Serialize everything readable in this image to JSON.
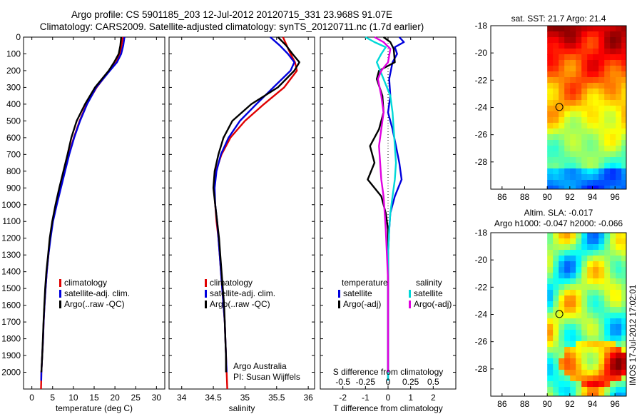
{
  "header": {
    "title_line1": "Argo profile: CS 5901185_203 12-Jul-2012 20120715_331 23.968S 91.07E",
    "title_line2": "Climatology: CARS2009. Satellite-adjusted climatology: synTS_20120711.nc (1.7d earlier)"
  },
  "side_label": "IMOS 17-Jul-2012 17:02:01",
  "colors": {
    "climatology": "#e00000",
    "satellite": "#0000dd",
    "argo": "#000000",
    "salinity_satellite": "#00d8d8",
    "salinity_argo": "#e000e0"
  },
  "chart_data": [
    {
      "id": "temperature",
      "type": "line",
      "xlabel": "temperature (deg C)",
      "ylabel": "",
      "xlim": [
        -2,
        32
      ],
      "ylim": [
        2100,
        0
      ],
      "xticks": [
        0,
        5,
        10,
        15,
        20,
        25,
        30
      ],
      "yticks": [
        0,
        100,
        200,
        300,
        400,
        500,
        600,
        700,
        800,
        900,
        1000,
        1100,
        1200,
        1300,
        1400,
        1500,
        1600,
        1700,
        1800,
        1900,
        2000
      ],
      "legend": [
        "climatology",
        "satellite-adj. clim.",
        "Argo(..raw -QC)"
      ],
      "legend_position": "lower-center",
      "series": [
        {
          "name": "climatology",
          "color": "#e00000",
          "x": [
            21.9,
            21.6,
            21.2,
            20.3,
            18.7,
            15.6,
            13.2,
            11.5,
            10.1,
            8.9,
            7.9,
            6.9,
            5.9,
            5.0,
            4.4,
            4.0,
            3.6,
            3.3,
            3.05,
            2.85,
            2.7,
            2.5,
            2.4,
            2.3,
            2.25,
            2.2
          ],
          "y": [
            0,
            50,
            100,
            150,
            200,
            300,
            400,
            500,
            600,
            700,
            800,
            900,
            1000,
            1100,
            1200,
            1300,
            1400,
            1500,
            1600,
            1700,
            1800,
            1900,
            1950,
            2000,
            2050,
            2100
          ]
        },
        {
          "name": "satellite-adj. clim.",
          "color": "#0000dd",
          "x": [
            22.3,
            22.0,
            21.5,
            20.5,
            18.8,
            15.5,
            13.3,
            11.6,
            10.2,
            9.0,
            8.0,
            7.0,
            6.0,
            5.1,
            4.5,
            4.0,
            3.6,
            3.3,
            3.05,
            2.85,
            2.7,
            2.5,
            2.4,
            2.3,
            2.25
          ],
          "y": [
            0,
            50,
            100,
            150,
            200,
            300,
            400,
            500,
            600,
            700,
            800,
            900,
            1000,
            1100,
            1200,
            1300,
            1400,
            1500,
            1600,
            1700,
            1800,
            1900,
            1950,
            2000,
            2050
          ]
        },
        {
          "name": "Argo(..raw -QC)",
          "color": "#000000",
          "x": [
            21.5,
            21.3,
            20.9,
            19.8,
            18.5,
            15.2,
            12.8,
            10.8,
            9.5,
            8.6,
            7.6,
            6.6,
            5.7,
            4.9,
            4.3,
            3.9,
            3.5,
            3.2,
            3.0,
            2.8,
            2.65,
            2.5,
            2.4,
            2.3
          ],
          "y": [
            0,
            50,
            100,
            150,
            200,
            300,
            400,
            500,
            600,
            700,
            800,
            900,
            1000,
            1100,
            1200,
            1300,
            1400,
            1500,
            1600,
            1700,
            1800,
            1900,
            1950,
            2000
          ]
        }
      ]
    },
    {
      "id": "salinity",
      "type": "line",
      "xlabel": "salinity",
      "ylabel": "",
      "xlim": [
        33.8,
        36.1
      ],
      "ylim": [
        2100,
        0
      ],
      "xticks": [
        34,
        34.5,
        35,
        35.5,
        36
      ],
      "legend": [
        "climatology",
        "satellite-adj. clim.",
        "Argo(..raw -QC)"
      ],
      "legend_position": "lower-center",
      "annotation": [
        "Argo Australia",
        "PI: Susan Wijffels"
      ],
      "series": [
        {
          "name": "climatology",
          "color": "#e00000",
          "x": [
            35.6,
            35.66,
            35.72,
            35.79,
            35.82,
            35.62,
            35.3,
            35.0,
            34.77,
            34.63,
            34.54,
            34.51,
            34.53,
            34.55,
            34.58,
            34.6,
            34.62,
            34.64,
            34.66,
            34.68,
            34.69,
            34.7,
            34.71,
            34.72
          ],
          "y": [
            0,
            50,
            100,
            150,
            200,
            300,
            400,
            500,
            600,
            700,
            800,
            900,
            1000,
            1100,
            1200,
            1300,
            1400,
            1500,
            1600,
            1700,
            1800,
            1900,
            2000,
            2100
          ]
        },
        {
          "name": "satellite-adj. clim.",
          "color": "#0000dd",
          "x": [
            35.4,
            35.55,
            35.68,
            35.78,
            35.72,
            35.45,
            35.18,
            34.92,
            34.74,
            34.62,
            34.55,
            34.52,
            34.53,
            34.56,
            34.58,
            34.6,
            34.62,
            34.64,
            34.66,
            34.68,
            34.69,
            34.7,
            34.71
          ],
          "y": [
            0,
            50,
            100,
            150,
            200,
            300,
            400,
            500,
            600,
            700,
            800,
            900,
            1000,
            1100,
            1200,
            1300,
            1400,
            1500,
            1600,
            1700,
            1800,
            1900,
            2000
          ]
        },
        {
          "name": "Argo(..raw -QC)",
          "color": "#000000",
          "x": [
            35.52,
            35.65,
            35.75,
            35.86,
            35.78,
            35.52,
            35.1,
            34.8,
            34.66,
            34.58,
            34.52,
            34.5,
            34.53,
            34.56,
            34.59,
            34.61,
            34.63,
            34.65,
            34.67,
            34.68,
            34.69,
            34.7,
            34.7
          ],
          "y": [
            0,
            50,
            100,
            150,
            200,
            300,
            400,
            500,
            600,
            700,
            800,
            900,
            1000,
            1100,
            1200,
            1300,
            1400,
            1500,
            1600,
            1700,
            1800,
            1900,
            2000
          ]
        }
      ]
    },
    {
      "id": "differences",
      "type": "line",
      "xlabel": "T difference from climatology",
      "x2label": "S difference from climatology",
      "xlim": [
        -3,
        3
      ],
      "ylim": [
        2100,
        0
      ],
      "xticks": [
        -2,
        -1,
        0,
        1,
        2
      ],
      "x2ticks": [
        "-0.5",
        "-0.25",
        "0",
        "0.25",
        "0.5"
      ],
      "x2tick_positions": [
        -2,
        -1,
        0,
        1,
        2
      ],
      "legend_headers": [
        "temperature",
        "salinity"
      ],
      "legend": [
        "satellite",
        "Argo(-adj)",
        "satellite",
        "Argo(-adj)"
      ],
      "legend_position": "lower-center",
      "series": [
        {
          "name": "temperature satellite",
          "color": "#0000dd",
          "x": [
            0.5,
            0.7,
            0.3,
            0.4,
            0.2,
            0.05,
            0.1,
            0.0,
            0.2,
            0.35,
            0.5,
            0.6,
            0.3,
            0.1,
            0.05,
            0.0,
            0.0,
            0.0,
            0.0,
            0.0,
            0.0,
            0.0
          ],
          "y": [
            0,
            30,
            60,
            100,
            150,
            250,
            350,
            450,
            550,
            650,
            750,
            850,
            950,
            1050,
            1150,
            1300,
            1450,
            1600,
            1750,
            1900,
            2000,
            2050
          ]
        },
        {
          "name": "temperature Argo(-adj)",
          "color": "#000000",
          "x": [
            -0.2,
            0.1,
            0.25,
            0.3,
            -0.4,
            -0.5,
            -0.25,
            -0.2,
            -0.4,
            -0.8,
            -0.6,
            -0.9,
            -0.3,
            -0.1,
            0.0,
            0.0,
            0.0,
            0.0,
            0.0,
            0.0,
            0.0
          ],
          "y": [
            0,
            30,
            70,
            150,
            200,
            250,
            350,
            450,
            550,
            650,
            750,
            850,
            950,
            1050,
            1150,
            1300,
            1450,
            1600,
            1750,
            1900,
            2000
          ]
        },
        {
          "name": "salinity satellite",
          "color": "#00d8d8",
          "x": [
            -1.0,
            -0.6,
            -0.1,
            -0.3,
            -0.5,
            -0.2,
            0.1,
            0.2,
            0.25,
            0.3,
            0.35,
            0.3,
            0.2,
            0.1,
            0.05,
            0.0,
            0.0,
            0.0,
            0.0,
            0.0,
            0.0,
            0.0
          ],
          "y": [
            0,
            30,
            60,
            100,
            150,
            250,
            350,
            450,
            550,
            650,
            750,
            850,
            950,
            1050,
            1150,
            1300,
            1450,
            1600,
            1750,
            1900,
            2000,
            2050
          ]
        },
        {
          "name": "salinity Argo(-adj)",
          "color": "#e000e0",
          "x": [
            -0.6,
            -0.2,
            0.1,
            0.0,
            -0.3,
            -0.45,
            -0.3,
            -0.2,
            -0.3,
            -0.4,
            -0.35,
            -0.3,
            -0.2,
            -0.15,
            -0.1,
            -0.05,
            0.0,
            0.0,
            0.0,
            0.0,
            0.0
          ],
          "y": [
            0,
            30,
            70,
            150,
            200,
            250,
            350,
            450,
            550,
            650,
            750,
            850,
            950,
            1050,
            1150,
            1300,
            1450,
            1600,
            1750,
            1900,
            2000
          ]
        }
      ]
    },
    {
      "id": "sst_map",
      "type": "heatmap",
      "title": "sat. SST: 21.7  Argo: 21.4",
      "xlim": [
        85,
        97
      ],
      "ylim": [
        -30,
        -18
      ],
      "xticks": [
        86,
        88,
        90,
        92,
        94,
        96
      ],
      "yticks": [
        -18,
        -20,
        -22,
        -24,
        -26,
        -28
      ],
      "data_x_range": [
        90,
        97
      ],
      "marker": {
        "lon": 91.07,
        "lat": -23.968
      }
    },
    {
      "id": "sla_map",
      "type": "heatmap",
      "title_line1": "Altim. SLA: -0.017",
      "title_line2": "Argo h1000: -0.047  h2000: -0.066",
      "xlim": [
        85,
        97
      ],
      "ylim": [
        -30,
        -18
      ],
      "xticks": [
        86,
        88,
        90,
        92,
        94,
        96
      ],
      "yticks": [
        -18,
        -20,
        -22,
        -24,
        -26,
        -28
      ],
      "data_x_range": [
        90,
        97
      ],
      "marker": {
        "lon": 91.07,
        "lat": -23.968
      }
    }
  ]
}
